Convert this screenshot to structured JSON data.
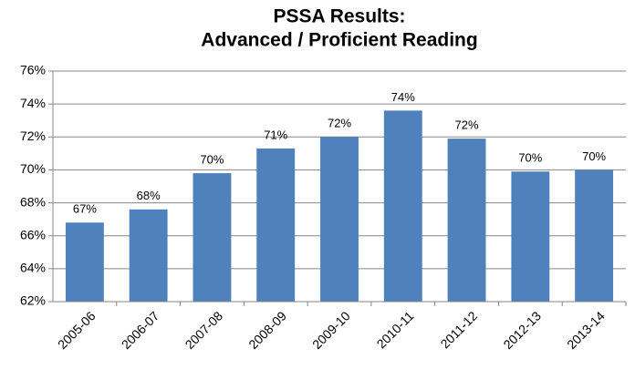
{
  "chart_data": {
    "type": "bar",
    "title": [
      "PSSA Results:",
      "Advanced / Proficient Reading"
    ],
    "categories": [
      "2005-06",
      "2006-07",
      "2007-08",
      "2008-09",
      "2009-10",
      "2010-11",
      "2011-12",
      "2012-13",
      "2013-14"
    ],
    "values": [
      66.8,
      67.6,
      69.8,
      71.3,
      72.0,
      73.6,
      71.9,
      69.9,
      70.0
    ],
    "value_labels": [
      "67%",
      "68%",
      "70%",
      "71%",
      "72%",
      "74%",
      "72%",
      "70%",
      "70%"
    ],
    "color": "#4f81bd",
    "ylim": [
      62,
      76
    ],
    "yticks": [
      {
        "value": 62,
        "label": "62%"
      },
      {
        "value": 64,
        "label": "64%"
      },
      {
        "value": 66,
        "label": "66%"
      },
      {
        "value": 68,
        "label": "68%"
      },
      {
        "value": 70,
        "label": "70%"
      },
      {
        "value": 72,
        "label": "72%"
      },
      {
        "value": 74,
        "label": "74%"
      },
      {
        "value": 76,
        "label": "76%"
      }
    ],
    "grid": true
  }
}
